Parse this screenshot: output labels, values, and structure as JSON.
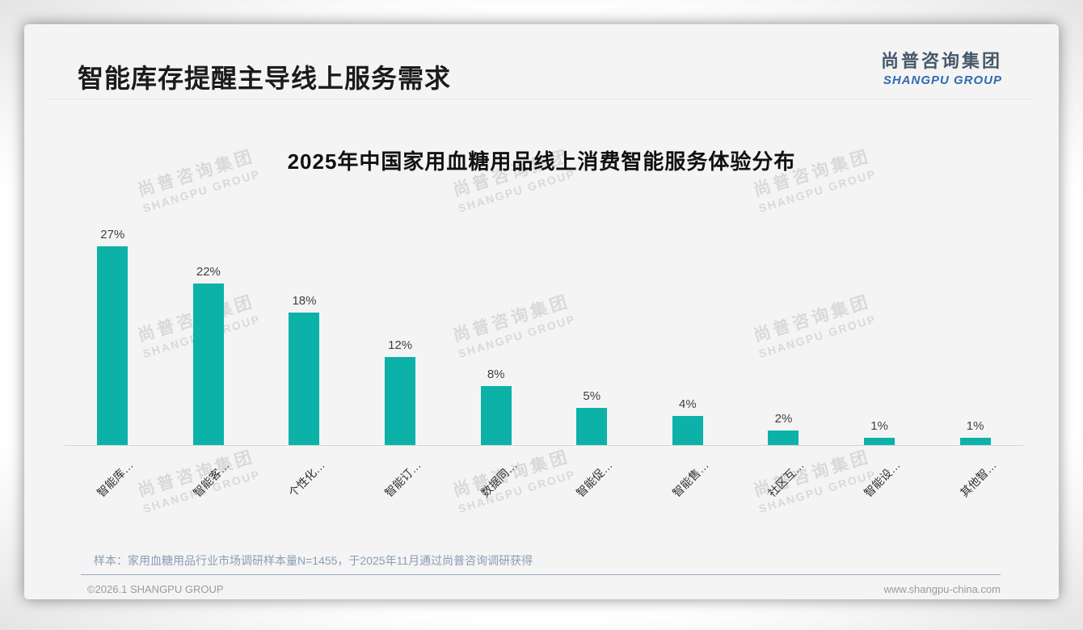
{
  "header": {
    "title": "智能库存提醒主导线上服务需求",
    "logo_cn": "尚普咨询集团",
    "logo_en": "SHANGPU GROUP"
  },
  "watermark": {
    "cn": "尚普咨询集团",
    "en": "SHANGPU GROUP"
  },
  "chart_data": {
    "type": "bar",
    "title": "2025年中国家用血糖用品线上消费智能服务体验分布",
    "categories": [
      "智能库…",
      "智能客…",
      "个性化…",
      "智能订…",
      "数据同…",
      "智能促…",
      "智能售…",
      "社区互…",
      "智能设…",
      "其他智…"
    ],
    "values": [
      27,
      22,
      18,
      12,
      8,
      5,
      4,
      2,
      1,
      1
    ],
    "unit": "%",
    "bar_color": "#0cb2a8",
    "ylim": [
      0,
      30
    ],
    "grid": false,
    "legend": false,
    "value_labels": [
      "27%",
      "22%",
      "18%",
      "12%",
      "8%",
      "5%",
      "4%",
      "2%",
      "1%",
      "1%"
    ]
  },
  "footnote": "样本：家用血糖用品行业市场调研样本量N=1455，于2025年11月通过尚普咨询调研获得",
  "footer": {
    "copyright": "©2026.1 SHANGPU GROUP",
    "website": "www.shangpu-china.com"
  }
}
